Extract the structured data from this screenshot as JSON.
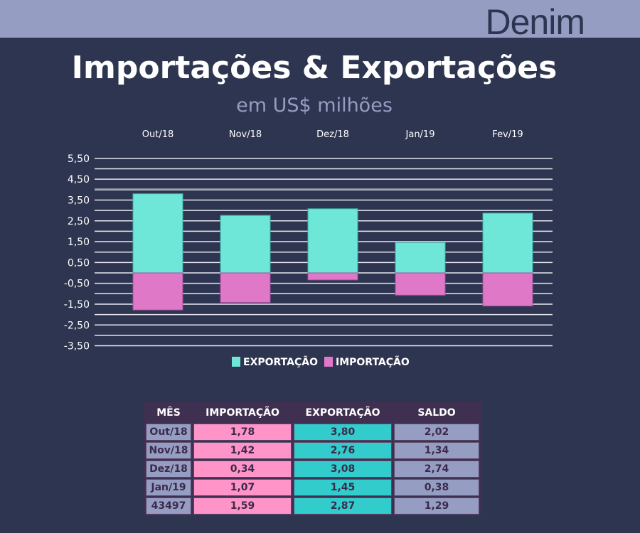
{
  "header": {
    "brand": "Denim"
  },
  "title": "Importações & Exportações",
  "subtitle": "em US$ milhões",
  "colors": {
    "exportacao": "#6ee6d8",
    "importacao": "#e078c8",
    "background": "#2e3550",
    "header": "#959dc3"
  },
  "chart_data": {
    "type": "bar",
    "stacked": true,
    "categories": [
      "Out/18",
      "Nov/18",
      "Dez/18",
      "Jan/19",
      "Fev/19"
    ],
    "series": [
      {
        "name": "EXPORTAÇÃO",
        "values": [
          3.8,
          2.76,
          3.08,
          1.45,
          2.87
        ]
      },
      {
        "name": "IMPORTAÇÃO",
        "values": [
          -1.78,
          -1.42,
          -0.34,
          -1.07,
          -1.59
        ]
      }
    ],
    "yticks": [
      "5,50",
      "4,50",
      "3,50",
      "2,50",
      "1,50",
      "0,50",
      "-0,50",
      "-1,50",
      "-2,50",
      "-3,50"
    ],
    "ytick_values": [
      5.5,
      4.5,
      3.5,
      2.5,
      1.5,
      0.5,
      -0.5,
      -1.5,
      -2.5,
      -3.5
    ],
    "ylim": [
      -3.5,
      5.5
    ],
    "grid": true,
    "legend": "bottom",
    "category_labels_position": "top"
  },
  "table": {
    "headers": [
      "MÊS",
      "IMPORTAÇÃO",
      "EXPORTAÇÃO",
      "SALDO"
    ],
    "rows": [
      [
        "Out/18",
        "1,78",
        "3,80",
        "2,02"
      ],
      [
        "Nov/18",
        "1,42",
        "2,76",
        "1,34"
      ],
      [
        "Dez/18",
        "0,34",
        "3,08",
        "2,74"
      ],
      [
        "Jan/19",
        "1,07",
        "1,45",
        "0,38"
      ],
      [
        "43497",
        "1,59",
        "2,87",
        "1,29"
      ]
    ]
  }
}
